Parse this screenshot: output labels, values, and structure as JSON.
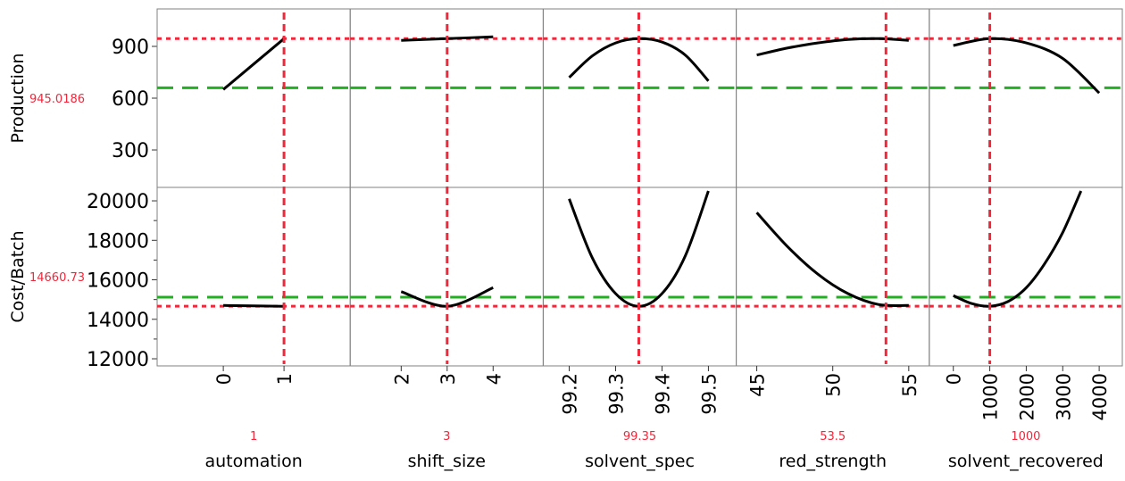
{
  "chart_data": {
    "type": "line",
    "title": "",
    "colors": {
      "curve": "#000000",
      "current": "#f0283c",
      "desirability": "#22b022",
      "frame": "#808080"
    },
    "responses": [
      {
        "name": "Production",
        "current_value": "945.0186",
        "current": 945.0186,
        "reference": 660,
        "ylim": [
          83,
          1117
        ],
        "ticks": [
          300,
          600,
          900
        ],
        "minor_ticks": []
      },
      {
        "name": "Cost/Batch",
        "current_value": "14660.73",
        "current": 14660.73,
        "reference": 15120,
        "ylim": [
          11640,
          20680
        ],
        "ticks": [
          12000,
          14000,
          16000,
          18000,
          20000
        ],
        "minor_ticks": [
          13000,
          15000,
          17000,
          19000
        ]
      }
    ],
    "factors": [
      {
        "name": "automation",
        "current_value": "1",
        "current": 1,
        "xlim": [
          -1.09,
          2.09
        ],
        "ticks": [
          "0",
          "1"
        ],
        "curves": [
          [
            [
              0,
              650
            ],
            [
              1,
              945
            ]
          ],
          [
            [
              0,
              14700
            ],
            [
              1,
              14660
            ]
          ]
        ]
      },
      {
        "name": "shift_size",
        "current_value": "3",
        "current": 3,
        "xlim": [
          0.89,
          5.09
        ],
        "ticks": [
          "2",
          "3",
          "4"
        ],
        "curves": [
          [
            [
              2,
              935
            ],
            [
              3,
              945
            ],
            [
              4,
              955
            ]
          ],
          [
            [
              2,
              15400
            ],
            [
              3,
              14660
            ],
            [
              4,
              15600
            ]
          ]
        ]
      },
      {
        "name": "solvent_spec",
        "current_value": "99.35",
        "current": 99.35,
        "xlim": [
          99.144,
          99.56
        ],
        "ticks": [
          "99.2",
          "99.3",
          "99.4",
          "99.5"
        ],
        "curves": [
          [
            [
              99.2,
              720
            ],
            [
              99.25,
              845
            ],
            [
              99.3,
              920
            ],
            [
              99.35,
              945
            ],
            [
              99.4,
              925
            ],
            [
              99.45,
              850
            ],
            [
              99.5,
              700
            ]
          ],
          [
            [
              99.2,
              20100
            ],
            [
              99.25,
              17100
            ],
            [
              99.3,
              15300
            ],
            [
              99.35,
              14660
            ],
            [
              99.4,
              15300
            ],
            [
              99.45,
              17200
            ],
            [
              99.5,
              20500
            ]
          ]
        ]
      },
      {
        "name": "red_strength",
        "current_value": "53.5",
        "current": 53.5,
        "xlim": [
          43.65,
          56.35
        ],
        "ticks": [
          "45",
          "50",
          "55"
        ],
        "curves": [
          [
            [
              45,
              850
            ],
            [
              47,
              890
            ],
            [
              49,
              920
            ],
            [
              51,
              940
            ],
            [
              53,
              945
            ],
            [
              55,
              935
            ]
          ],
          [
            [
              45,
              19400
            ],
            [
              47,
              17700
            ],
            [
              49,
              16300
            ],
            [
              51,
              15300
            ],
            [
              53,
              14750
            ],
            [
              55,
              14700
            ]
          ]
        ]
      },
      {
        "name": "solvent_recovered",
        "current_value": "1000",
        "current": 1000,
        "xlim": [
          -659,
          4634
        ],
        "ticks": [
          "0",
          "1000",
          "2000",
          "3000",
          "4000"
        ],
        "curves": [
          [
            [
              0,
              905
            ],
            [
              1000,
              945
            ],
            [
              2000,
              920
            ],
            [
              3000,
              830
            ],
            [
              4000,
              630
            ]
          ],
          [
            [
              0,
              15200
            ],
            [
              500,
              14800
            ],
            [
              1000,
              14660
            ],
            [
              1500,
              14900
            ],
            [
              2000,
              15600
            ],
            [
              2500,
              16800
            ],
            [
              3000,
              18400
            ],
            [
              3500,
              20500
            ]
          ]
        ]
      }
    ]
  }
}
